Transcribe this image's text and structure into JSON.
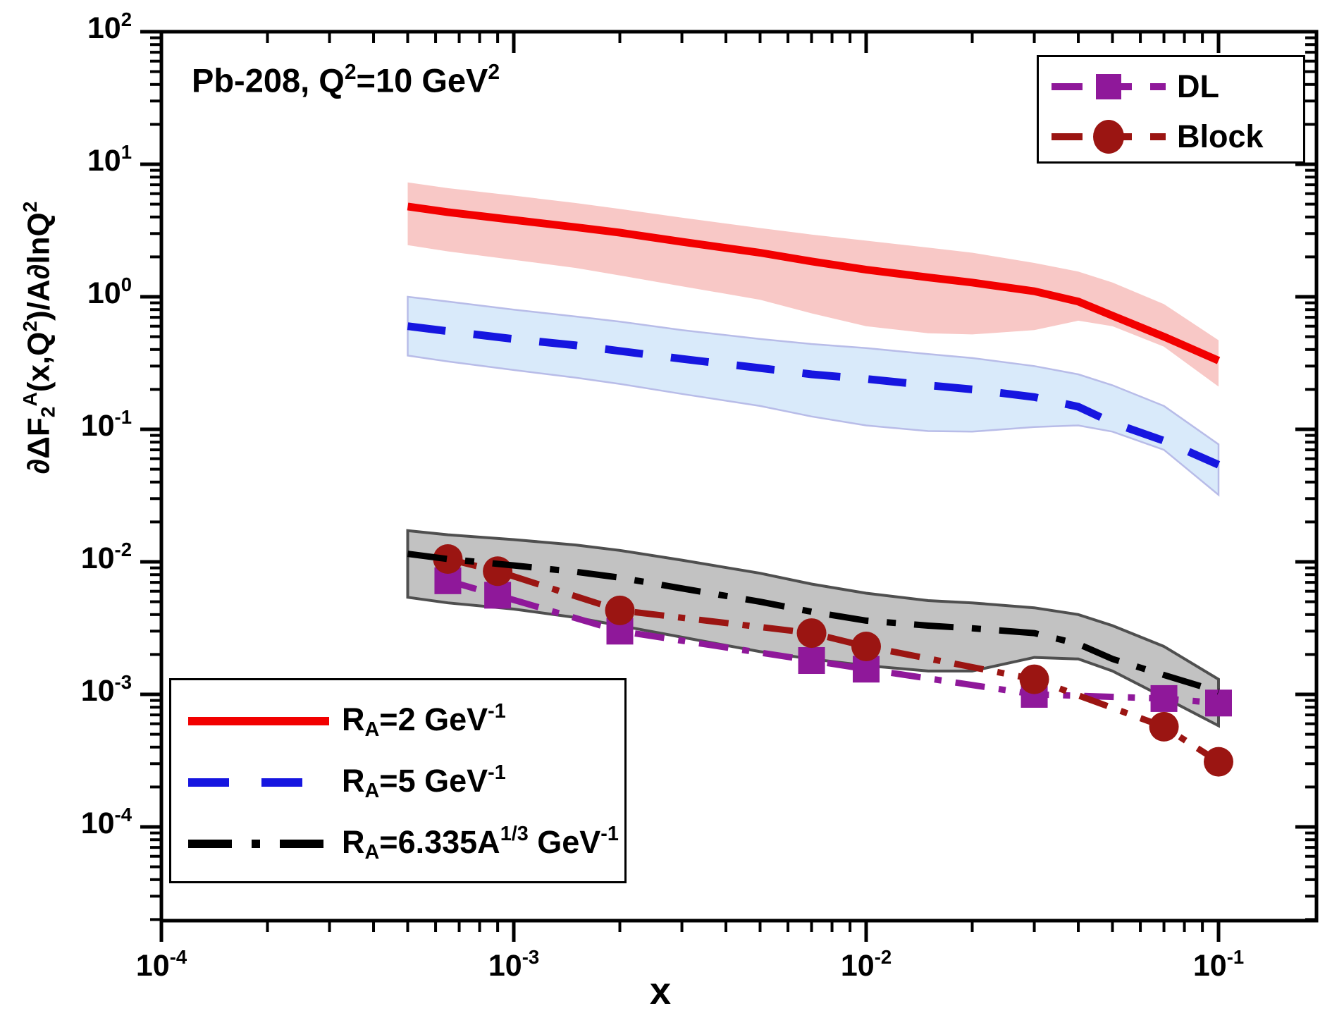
{
  "title": {
    "part1": "Pb-208, Q",
    "sup1": "2",
    "part2": "=10 GeV",
    "sup2": "2"
  },
  "axes": {
    "x": {
      "label": "x",
      "scale": "log",
      "min": 0.0001,
      "max": 0.1887,
      "tick_exponents": [
        -4,
        -3,
        -2,
        -1
      ]
    },
    "y": {
      "scale": "log",
      "min": 2e-05,
      "max": 100,
      "tick_exponents": [
        2,
        1,
        0,
        -1,
        -2,
        -3,
        -4
      ],
      "label_parts": {
        "p1": "∂ΔF",
        "sub1": "2",
        "sup1": "A",
        "p2": "(x,Q",
        "sup2": "2",
        "p3": ")/A∂lnQ",
        "sup3": "2"
      }
    }
  },
  "colors": {
    "red_line": "#f20000",
    "red_band": "#f8c8c6",
    "blue_line": "#1616e0",
    "blue_band": "#d9eafa",
    "blue_band_edge": "#b8bce8",
    "black_line": "#000000",
    "gray_band": "#c2c2c2",
    "gray_band_edge": "#4f4f4f",
    "dl_purple": "#8f189a",
    "block_maroon": "#9b1512",
    "frame": "#000000",
    "background": "#ffffff"
  },
  "legend_top": {
    "items": [
      {
        "label": "DL"
      },
      {
        "label": "Block"
      }
    ]
  },
  "legend_bottom": {
    "rows": [
      {
        "pre": "R",
        "sub": "A",
        "mid": "=2 GeV",
        "sup": "-1",
        "mid2": "",
        "sup2": ""
      },
      {
        "pre": "R",
        "sub": "A",
        "mid": "=5 GeV",
        "sup": "-1",
        "mid2": "",
        "sup2": ""
      },
      {
        "pre": "R",
        "sub": "A",
        "mid": "=6.335A",
        "sup": "1/3",
        "mid2": " GeV",
        "sup2": "-1"
      }
    ]
  },
  "chart_data": {
    "type": "line",
    "title": "Pb-208, Q^2=10 GeV^2",
    "xlabel": "x",
    "ylabel": "dDeltaF2^A(x,Q^2)/A dlnQ^2",
    "xlim": [
      0.0001,
      0.1887
    ],
    "ylim": [
      2e-05,
      100
    ],
    "grid": false,
    "legend_positions": {
      "markers": "upper right",
      "curves": "lower left"
    },
    "band_x": [
      0.0005,
      0.00065,
      0.001,
      0.0015,
      0.002,
      0.003,
      0.005,
      0.007,
      0.01,
      0.015,
      0.02,
      0.03,
      0.04,
      0.05,
      0.07,
      0.1
    ],
    "series": [
      {
        "name": "RA=2 GeV^-1",
        "style": "solid",
        "color_key": "red_line",
        "band_key": "red_band",
        "y": [
          4.8,
          4.35,
          3.8,
          3.35,
          3.05,
          2.6,
          2.15,
          1.85,
          1.6,
          1.4,
          1.28,
          1.1,
          0.92,
          0.72,
          0.5,
          0.33
        ],
        "band_top": [
          7.3,
          6.6,
          5.8,
          5.1,
          4.6,
          3.95,
          3.3,
          2.95,
          2.65,
          2.35,
          2.15,
          1.8,
          1.55,
          1.28,
          0.88,
          0.47
        ],
        "band_bottom": [
          2.45,
          2.2,
          1.9,
          1.65,
          1.45,
          1.2,
          0.95,
          0.75,
          0.6,
          0.53,
          0.52,
          0.56,
          0.66,
          0.6,
          0.42,
          0.21
        ]
      },
      {
        "name": "RA=5 GeV^-1",
        "style": "dashed",
        "color_key": "blue_line",
        "band_key": "blue_band",
        "y": [
          0.6,
          0.55,
          0.48,
          0.43,
          0.39,
          0.34,
          0.29,
          0.26,
          0.24,
          0.215,
          0.2,
          0.175,
          0.148,
          0.112,
          0.082,
          0.054
        ],
        "band_top": [
          1.0,
          0.92,
          0.8,
          0.71,
          0.65,
          0.56,
          0.48,
          0.44,
          0.41,
          0.37,
          0.345,
          0.3,
          0.26,
          0.215,
          0.15,
          0.077
        ],
        "band_bottom": [
          0.36,
          0.325,
          0.28,
          0.245,
          0.22,
          0.185,
          0.15,
          0.125,
          0.107,
          0.097,
          0.096,
          0.104,
          0.107,
          0.096,
          0.07,
          0.032
        ]
      },
      {
        "name": "RA=6.335A^1/3 GeV^-1",
        "style": "dashdot",
        "color_key": "black_line",
        "band_key": "gray_band",
        "y": [
          0.0115,
          0.0105,
          0.0094,
          0.0084,
          0.0076,
          0.0063,
          0.005,
          0.0042,
          0.0036,
          0.0033,
          0.00315,
          0.0029,
          0.0024,
          0.00185,
          0.0014,
          0.00105
        ],
        "band_top": [
          0.0172,
          0.016,
          0.0147,
          0.0134,
          0.0122,
          0.0103,
          0.0082,
          0.0068,
          0.0058,
          0.0051,
          0.0049,
          0.0045,
          0.004,
          0.0033,
          0.0023,
          0.0013
        ],
        "band_bottom": [
          0.0054,
          0.0049,
          0.0044,
          0.0038,
          0.0033,
          0.0027,
          0.0021,
          0.00185,
          0.00165,
          0.0015,
          0.0015,
          0.0019,
          0.00185,
          0.0015,
          0.00095,
          0.00058
        ]
      }
    ],
    "marker_series": [
      {
        "name": "DL",
        "marker": "square",
        "color_key": "dl_purple",
        "x": [
          0.00065,
          0.0009,
          0.002,
          0.007,
          0.01,
          0.03,
          0.07,
          0.1
        ],
        "y": [
          0.0072,
          0.0056,
          0.003,
          0.0018,
          0.00155,
          0.001,
          0.00093,
          0.00086
        ]
      },
      {
        "name": "Block",
        "marker": "circle",
        "color_key": "block_maroon",
        "x": [
          0.00065,
          0.0009,
          0.002,
          0.007,
          0.01,
          0.03,
          0.07,
          0.1
        ],
        "y": [
          0.0105,
          0.0085,
          0.0043,
          0.0029,
          0.0023,
          0.0013,
          0.00057,
          0.00031
        ]
      }
    ]
  }
}
